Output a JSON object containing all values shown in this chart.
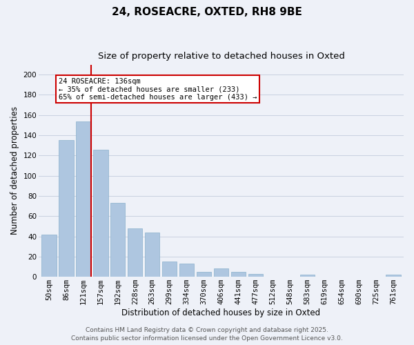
{
  "title": "24, ROSEACRE, OXTED, RH8 9BE",
  "subtitle": "Size of property relative to detached houses in Oxted",
  "xlabel": "Distribution of detached houses by size in Oxted",
  "ylabel": "Number of detached properties",
  "categories": [
    "50sqm",
    "86sqm",
    "121sqm",
    "157sqm",
    "192sqm",
    "228sqm",
    "263sqm",
    "299sqm",
    "334sqm",
    "370sqm",
    "406sqm",
    "441sqm",
    "477sqm",
    "512sqm",
    "548sqm",
    "583sqm",
    "619sqm",
    "654sqm",
    "690sqm",
    "725sqm",
    "761sqm"
  ],
  "values": [
    42,
    135,
    154,
    126,
    73,
    48,
    44,
    15,
    13,
    5,
    8,
    5,
    3,
    0,
    0,
    2,
    0,
    0,
    0,
    0,
    2
  ],
  "bar_color": "#aec6e0",
  "bar_edge_color": "#8ab0cc",
  "vline_x_index": 2,
  "vline_color": "#cc0000",
  "ylim": [
    0,
    210
  ],
  "yticks": [
    0,
    20,
    40,
    60,
    80,
    100,
    120,
    140,
    160,
    180,
    200
  ],
  "annotation_title": "24 ROSEACRE: 136sqm",
  "annotation_line1": "← 35% of detached houses are smaller (233)",
  "annotation_line2": "65% of semi-detached houses are larger (433) →",
  "footer_line1": "Contains HM Land Registry data © Crown copyright and database right 2025.",
  "footer_line2": "Contains public sector information licensed under the Open Government Licence v3.0.",
  "bg_color": "#eef1f8",
  "grid_color": "#c8d0e0",
  "title_fontsize": 11,
  "subtitle_fontsize": 9.5,
  "axis_label_fontsize": 8.5,
  "tick_fontsize": 7.5,
  "footer_fontsize": 6.5,
  "annotation_fontsize": 7.5
}
